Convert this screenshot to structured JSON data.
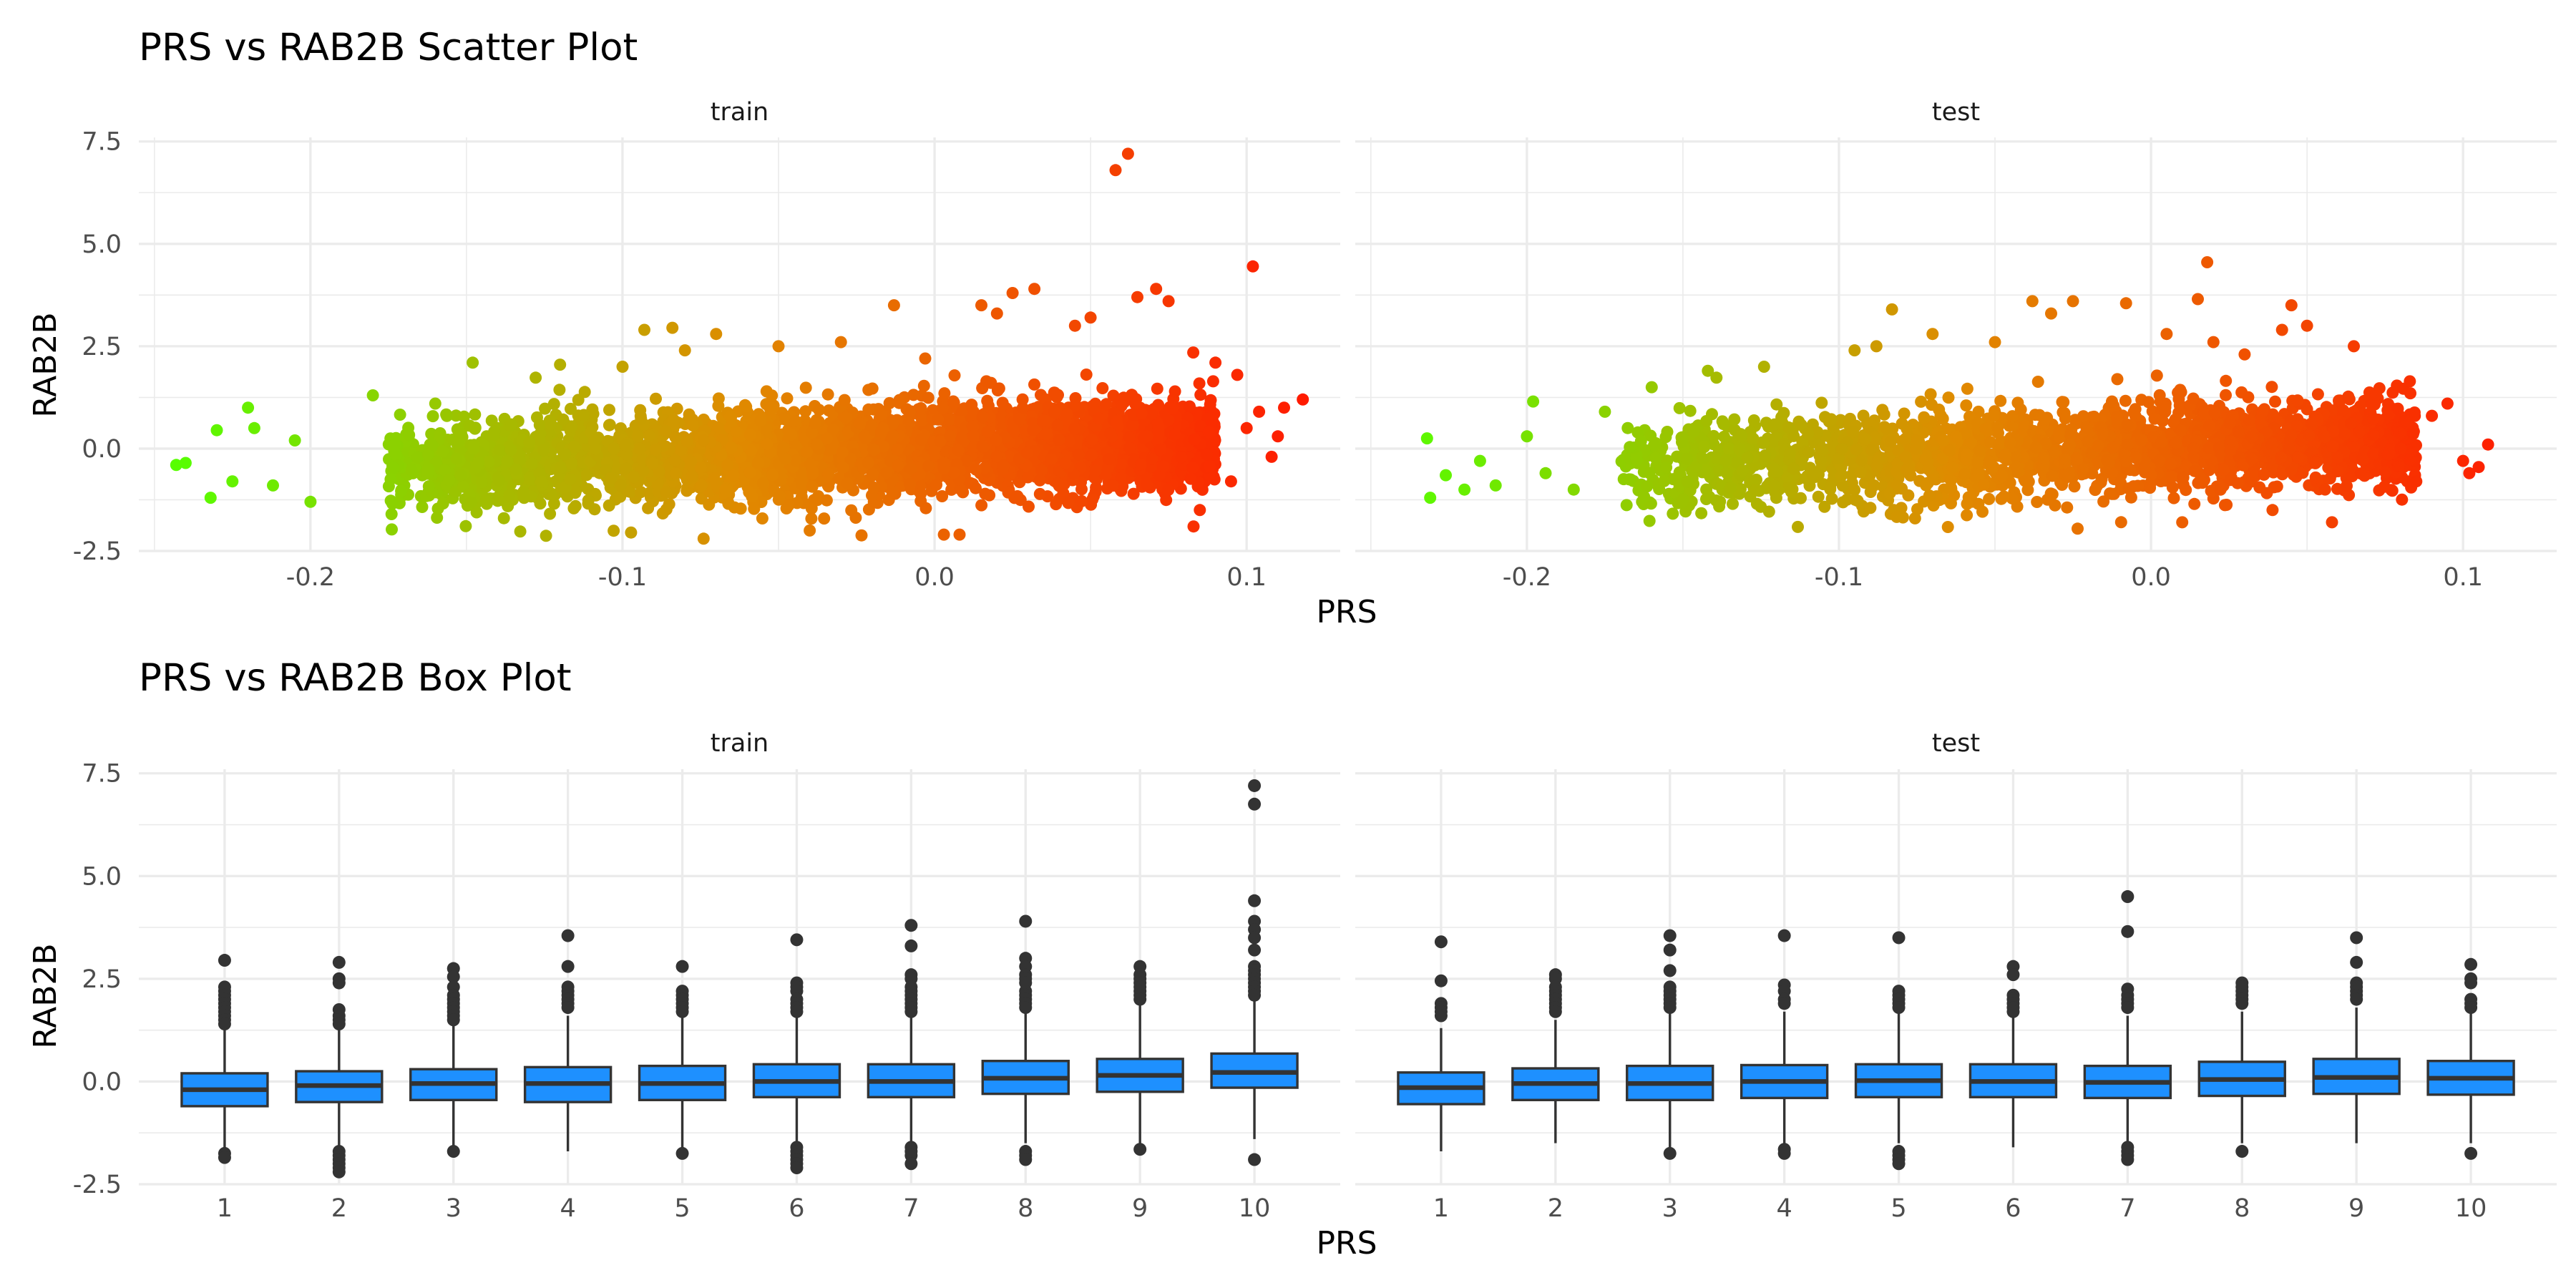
{
  "chart_data": [
    {
      "type": "scatter",
      "title": "PRS vs RAB2B Scatter Plot",
      "xlabel": "PRS",
      "ylabel": "RAB2B",
      "facets": [
        "train",
        "test"
      ],
      "color_scale": {
        "low": "#55ff00",
        "mid": "#e08a00",
        "high": "#ff1a00",
        "mapped_to": "PRS"
      },
      "xlim": [
        -0.255,
        0.13
      ],
      "ylim": [
        -2.5,
        7.6
      ],
      "x_ticks": [
        -0.2,
        -0.1,
        0.0,
        0.1
      ],
      "x_tick_labels": [
        "-0.2",
        "-0.1",
        "0.0",
        "0.1"
      ],
      "y_ticks": [
        -2.5,
        0.0,
        2.5,
        5.0,
        7.5
      ],
      "y_tick_labels": [
        "-2.5",
        "0.0",
        "2.5",
        "5.0",
        "7.5"
      ],
      "grid": true,
      "legend": "none",
      "panels": [
        {
          "facet": "train",
          "bulk": {
            "n": 3400,
            "x_range": [
              -0.175,
              0.09
            ],
            "y_sd": 0.55,
            "y_slope": 2.5
          },
          "points": [
            [
              -0.243,
              -0.4
            ],
            [
              -0.24,
              -0.35
            ],
            [
              -0.232,
              -1.2
            ],
            [
              -0.23,
              0.45
            ],
            [
              -0.225,
              -0.8
            ],
            [
              -0.22,
              1.0
            ],
            [
              -0.218,
              0.5
            ],
            [
              -0.212,
              -0.9
            ],
            [
              -0.205,
              0.2
            ],
            [
              -0.2,
              -1.3
            ],
            [
              -0.18,
              1.3
            ],
            [
              -0.174,
              -1.6
            ],
            [
              -0.16,
              1.1
            ],
            [
              -0.148,
              2.1
            ],
            [
              -0.138,
              -1.7
            ],
            [
              -0.12,
              2.05
            ],
            [
              -0.1,
              2.0
            ],
            [
              -0.093,
              2.9
            ],
            [
              -0.084,
              2.95
            ],
            [
              -0.08,
              2.4
            ],
            [
              -0.074,
              -2.2
            ],
            [
              -0.07,
              2.8
            ],
            [
              -0.05,
              2.5
            ],
            [
              -0.04,
              -2.0
            ],
            [
              -0.03,
              2.6
            ],
            [
              -0.013,
              3.5
            ],
            [
              -0.003,
              2.2
            ],
            [
              0.003,
              -2.1
            ],
            [
              0.008,
              -2.1
            ],
            [
              0.015,
              3.5
            ],
            [
              0.02,
              3.3
            ],
            [
              0.025,
              3.8
            ],
            [
              0.032,
              3.9
            ],
            [
              0.045,
              3.0
            ],
            [
              0.05,
              3.2
            ],
            [
              0.058,
              6.8
            ],
            [
              0.062,
              7.2
            ],
            [
              0.065,
              3.7
            ],
            [
              0.071,
              3.9
            ],
            [
              0.075,
              3.6
            ],
            [
              0.083,
              -1.9
            ],
            [
              0.09,
              2.1
            ],
            [
              0.095,
              -0.8
            ],
            [
              0.097,
              1.8
            ],
            [
              0.1,
              0.5
            ],
            [
              0.102,
              4.45
            ],
            [
              0.104,
              0.9
            ],
            [
              0.108,
              -0.2
            ],
            [
              0.11,
              0.3
            ],
            [
              0.112,
              1.0
            ],
            [
              0.118,
              1.2
            ],
            [
              0.085,
              -1.5
            ]
          ]
        },
        {
          "facet": "test",
          "bulk": {
            "n": 2300,
            "x_range": [
              -0.17,
              0.085
            ],
            "y_sd": 0.55,
            "y_slope": 2.5
          },
          "points": [
            [
              -0.232,
              0.25
            ],
            [
              -0.231,
              -1.2
            ],
            [
              -0.226,
              -0.65
            ],
            [
              -0.22,
              -1.0
            ],
            [
              -0.215,
              -0.3
            ],
            [
              -0.21,
              -0.9
            ],
            [
              -0.2,
              0.3
            ],
            [
              -0.198,
              1.15
            ],
            [
              -0.194,
              -0.6
            ],
            [
              -0.185,
              -1.0
            ],
            [
              -0.175,
              0.9
            ],
            [
              -0.16,
              1.5
            ],
            [
              -0.142,
              1.9
            ],
            [
              -0.124,
              2.0
            ],
            [
              -0.095,
              2.4
            ],
            [
              -0.088,
              2.5
            ],
            [
              -0.083,
              3.4
            ],
            [
              -0.07,
              2.8
            ],
            [
              -0.05,
              2.6
            ],
            [
              -0.038,
              3.6
            ],
            [
              -0.032,
              3.3
            ],
            [
              -0.025,
              3.6
            ],
            [
              -0.008,
              3.55
            ],
            [
              0.005,
              2.8
            ],
            [
              0.01,
              -1.8
            ],
            [
              0.015,
              3.65
            ],
            [
              0.018,
              4.55
            ],
            [
              0.02,
              2.6
            ],
            [
              0.03,
              2.3
            ],
            [
              0.042,
              2.9
            ],
            [
              0.045,
              3.5
            ],
            [
              0.05,
              3.0
            ],
            [
              0.058,
              -1.8
            ],
            [
              0.065,
              2.5
            ],
            [
              0.08,
              0.0
            ],
            [
              0.085,
              -0.8
            ],
            [
              0.09,
              0.8
            ],
            [
              0.095,
              1.1
            ],
            [
              0.1,
              -0.3
            ],
            [
              0.102,
              -0.6
            ],
            [
              0.105,
              -0.45
            ],
            [
              0.108,
              0.1
            ]
          ]
        }
      ]
    },
    {
      "type": "box",
      "title": "PRS vs RAB2B Box Plot",
      "xlabel": "PRS",
      "ylabel": "RAB2B",
      "facets": [
        "train",
        "test"
      ],
      "categories": [
        "1",
        "2",
        "3",
        "4",
        "5",
        "6",
        "7",
        "8",
        "9",
        "10"
      ],
      "fill_color": "#1e90ff",
      "ylim": [
        -2.5,
        7.6
      ],
      "y_ticks": [
        -2.5,
        0.0,
        2.5,
        5.0,
        7.5
      ],
      "y_tick_labels": [
        "-2.5",
        "0.0",
        "2.5",
        "5.0",
        "7.5"
      ],
      "grid": true,
      "legend": "none",
      "panels": [
        {
          "facet": "train",
          "boxes": [
            {
              "q1": -0.6,
              "median": -0.2,
              "q3": 0.2,
              "lower": -1.7,
              "upper": 1.3,
              "outliers": [
                2.95,
                2.3,
                2.2,
                2.1,
                2.0,
                1.9,
                1.8,
                1.7,
                1.6,
                1.5,
                1.4,
                -1.75,
                -1.85
              ]
            },
            {
              "q1": -0.5,
              "median": -0.1,
              "q3": 0.25,
              "lower": -1.55,
              "upper": 1.35,
              "outliers": [
                2.9,
                2.5,
                2.4,
                1.75,
                1.6,
                1.5,
                1.4,
                -1.7,
                -1.8,
                -1.9,
                -2.0,
                -2.1,
                -2.2
              ]
            },
            {
              "q1": -0.45,
              "median": -0.05,
              "q3": 0.3,
              "lower": -1.6,
              "upper": 1.4,
              "outliers": [
                2.75,
                2.55,
                2.3,
                2.1,
                2.0,
                1.9,
                1.8,
                1.7,
                1.6,
                1.5,
                -1.7
              ]
            },
            {
              "q1": -0.5,
              "median": -0.05,
              "q3": 0.35,
              "lower": -1.7,
              "upper": 1.6,
              "outliers": [
                3.55,
                2.8,
                2.3,
                2.2,
                2.1,
                2.0,
                1.9,
                1.8
              ]
            },
            {
              "q1": -0.45,
              "median": -0.05,
              "q3": 0.38,
              "lower": -1.65,
              "upper": 1.6,
              "outliers": [
                2.8,
                2.2,
                2.1,
                2.0,
                1.9,
                1.8,
                1.7,
                -1.75
              ]
            },
            {
              "q1": -0.38,
              "median": 0.0,
              "q3": 0.42,
              "lower": -1.5,
              "upper": 1.6,
              "outliers": [
                3.45,
                2.4,
                2.3,
                2.2,
                2.0,
                1.9,
                1.8,
                1.7,
                -1.6,
                -1.7,
                -1.8,
                -1.9,
                -2.0,
                -2.1
              ]
            },
            {
              "q1": -0.38,
              "median": 0.0,
              "q3": 0.42,
              "lower": -1.5,
              "upper": 1.6,
              "outliers": [
                3.8,
                3.3,
                2.6,
                2.5,
                2.3,
                2.2,
                2.1,
                2.0,
                1.9,
                1.8,
                1.7,
                -1.6,
                -1.7,
                -1.8,
                -2.0
              ]
            },
            {
              "q1": -0.3,
              "median": 0.08,
              "q3": 0.5,
              "lower": -1.5,
              "upper": 1.7,
              "outliers": [
                3.9,
                3.0,
                2.8,
                2.6,
                2.5,
                2.4,
                2.2,
                2.1,
                2.0,
                1.9,
                1.8,
                -1.7,
                -1.8,
                -1.9
              ]
            },
            {
              "q1": -0.25,
              "median": 0.15,
              "q3": 0.55,
              "lower": -1.5,
              "upper": 1.9,
              "outliers": [
                2.8,
                2.6,
                2.5,
                2.4,
                2.3,
                2.2,
                2.1,
                2.0,
                -1.65
              ]
            },
            {
              "q1": -0.15,
              "median": 0.22,
              "q3": 0.68,
              "lower": -1.4,
              "upper": 2.0,
              "outliers": [
                7.2,
                6.75,
                4.4,
                3.9,
                3.7,
                3.5,
                3.2,
                2.8,
                2.7,
                2.6,
                2.5,
                2.4,
                2.3,
                2.2,
                2.1,
                -1.9
              ]
            }
          ]
        },
        {
          "facet": "test",
          "boxes": [
            {
              "q1": -0.55,
              "median": -0.15,
              "q3": 0.22,
              "lower": -1.7,
              "upper": 1.3,
              "outliers": [
                3.4,
                2.45,
                1.9,
                1.8,
                1.7,
                1.6
              ]
            },
            {
              "q1": -0.45,
              "median": -0.05,
              "q3": 0.32,
              "lower": -1.5,
              "upper": 1.5,
              "outliers": [
                2.6,
                2.5,
                2.3,
                2.2,
                2.1,
                2.0,
                1.9,
                1.8,
                1.7
              ]
            },
            {
              "q1": -0.45,
              "median": -0.05,
              "q3": 0.38,
              "lower": -1.6,
              "upper": 1.65,
              "outliers": [
                3.55,
                3.2,
                2.7,
                2.3,
                2.2,
                2.1,
                2.0,
                1.9,
                1.8,
                -1.75
              ]
            },
            {
              "q1": -0.4,
              "median": 0.0,
              "q3": 0.4,
              "lower": -1.5,
              "upper": 1.7,
              "outliers": [
                3.55,
                2.35,
                2.2,
                2.0,
                1.9,
                -1.65,
                -1.75
              ]
            },
            {
              "q1": -0.38,
              "median": 0.02,
              "q3": 0.42,
              "lower": -1.5,
              "upper": 1.7,
              "outliers": [
                3.5,
                2.2,
                2.1,
                2.0,
                1.9,
                1.8,
                -1.7,
                -1.8,
                -1.9,
                -2.0
              ]
            },
            {
              "q1": -0.38,
              "median": 0.0,
              "q3": 0.42,
              "lower": -1.6,
              "upper": 1.6,
              "outliers": [
                2.8,
                2.6,
                2.1,
                2.0,
                1.9,
                1.8,
                1.7
              ]
            },
            {
              "q1": -0.4,
              "median": -0.02,
              "q3": 0.38,
              "lower": -1.5,
              "upper": 1.6,
              "outliers": [
                4.5,
                3.65,
                2.25,
                2.1,
                2.0,
                1.9,
                1.8,
                -1.6,
                -1.7,
                -1.8,
                -1.9
              ]
            },
            {
              "q1": -0.35,
              "median": 0.05,
              "q3": 0.48,
              "lower": -1.5,
              "upper": 1.7,
              "outliers": [
                2.4,
                2.3,
                2.2,
                2.1,
                2.0,
                1.9,
                -1.7
              ]
            },
            {
              "q1": -0.3,
              "median": 0.1,
              "q3": 0.55,
              "lower": -1.5,
              "upper": 1.8,
              "outliers": [
                3.5,
                2.9,
                2.4,
                2.3,
                2.2,
                2.1,
                2.0
              ]
            },
            {
              "q1": -0.32,
              "median": 0.08,
              "q3": 0.5,
              "lower": -1.5,
              "upper": 1.8,
              "outliers": [
                2.85,
                2.5,
                2.4,
                2.0,
                1.9,
                1.8,
                -1.75
              ]
            }
          ]
        }
      ]
    }
  ]
}
